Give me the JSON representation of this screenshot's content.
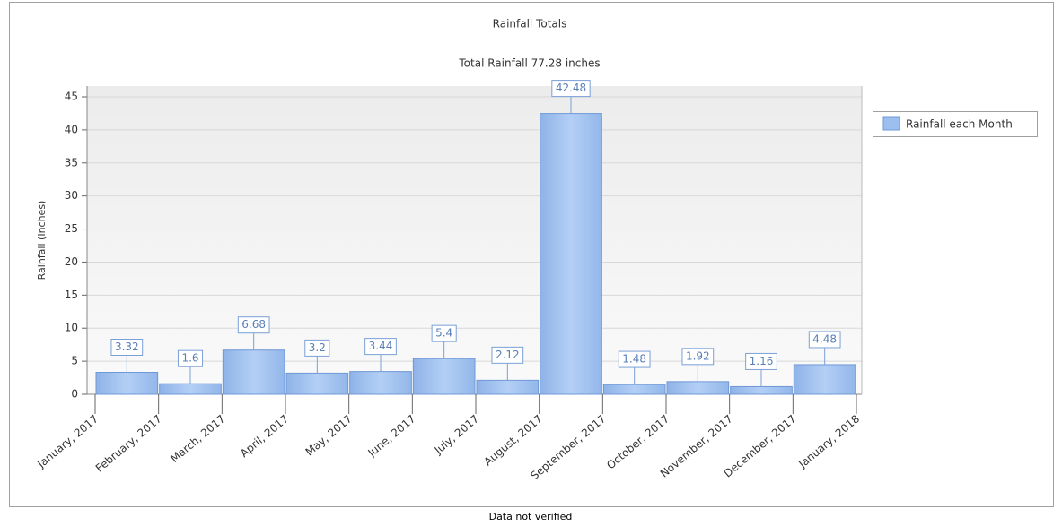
{
  "chart_data": {
    "type": "histogram",
    "title": "Rainfall Totals",
    "subtitle": "Total Rainfall 77.28 inches",
    "y_label": "Rainfall (Inches)",
    "footer": "Data not verified",
    "bins": [
      "January, 2017",
      "February, 2017",
      "March, 2017",
      "April, 2017",
      "May, 2017",
      "June, 2017",
      "July, 2017",
      "August, 2017",
      "September, 2017",
      "October, 2017",
      "November, 2017",
      "December, 2017",
      "January, 2018"
    ],
    "series": [
      {
        "name": "Rainfall each Month",
        "color": "#9dbff0",
        "values": [
          3.32,
          1.6,
          6.68,
          3.2,
          3.44,
          5.4,
          2.12,
          42.48,
          1.48,
          1.92,
          1.16,
          4.48
        ]
      }
    ],
    "ylim": [
      0,
      45
    ],
    "yticks": [
      0,
      5,
      10,
      15,
      20,
      25,
      30,
      35,
      40,
      45
    ],
    "grid": true,
    "legend": "right"
  }
}
